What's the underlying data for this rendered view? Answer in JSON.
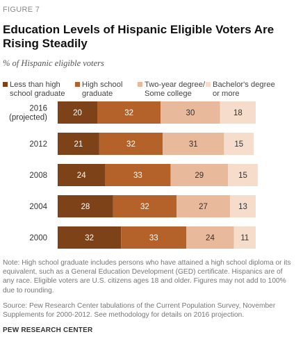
{
  "figure_label": "FIGURE 7",
  "title": "Education Levels of Hispanic Eligible Voters Are Rising Steadily",
  "subtitle": "% of Hispanic eligible voters",
  "note": "Note: High school graduate includes persons who have attained a high school diploma or its equivalent, such as a General Education Development (GED) certificate. Hispanics are of any race. Eligible voters are U.S. citizens ages 18 and older. Figures may not add to 100% due to rounding.",
  "source": "Source: Pew Research Center tabulations of the Current Population Survey, November Supplements for 2000-2012. See methodology for details on 2016 projection.",
  "org": "PEW RESEARCH CENTER",
  "chart_data": {
    "type": "bar",
    "orientation": "horizontal",
    "stacked": true,
    "title": "Education Levels of Hispanic Eligible Voters Are Rising Steadily",
    "subtitle": "% of Hispanic eligible voters",
    "legend_position": "top",
    "grid": false,
    "categories": [
      [
        "2016",
        "(projected)"
      ],
      [
        "2012"
      ],
      [
        "2008"
      ],
      [
        "2004"
      ],
      [
        "2000"
      ]
    ],
    "series": [
      {
        "name": [
          "Less than high",
          "school graduate"
        ],
        "color": "#7d4218",
        "label_color": "#ffffff",
        "values": [
          20,
          21,
          24,
          28,
          32
        ]
      },
      {
        "name": [
          "High school",
          "graduate"
        ],
        "color": "#b5622a",
        "label_color": "#ffffff",
        "values": [
          32,
          32,
          33,
          32,
          33
        ]
      },
      {
        "name": [
          "Two-year degree/",
          "Some college"
        ],
        "color": "#e8b99a",
        "label_color": "#333333",
        "values": [
          30,
          31,
          29,
          27,
          24
        ]
      },
      {
        "name": [
          "Bachelor's degree",
          "or more"
        ],
        "color": "#f5dccb",
        "label_color": "#333333",
        "values": [
          18,
          15,
          15,
          13,
          11
        ]
      }
    ]
  }
}
